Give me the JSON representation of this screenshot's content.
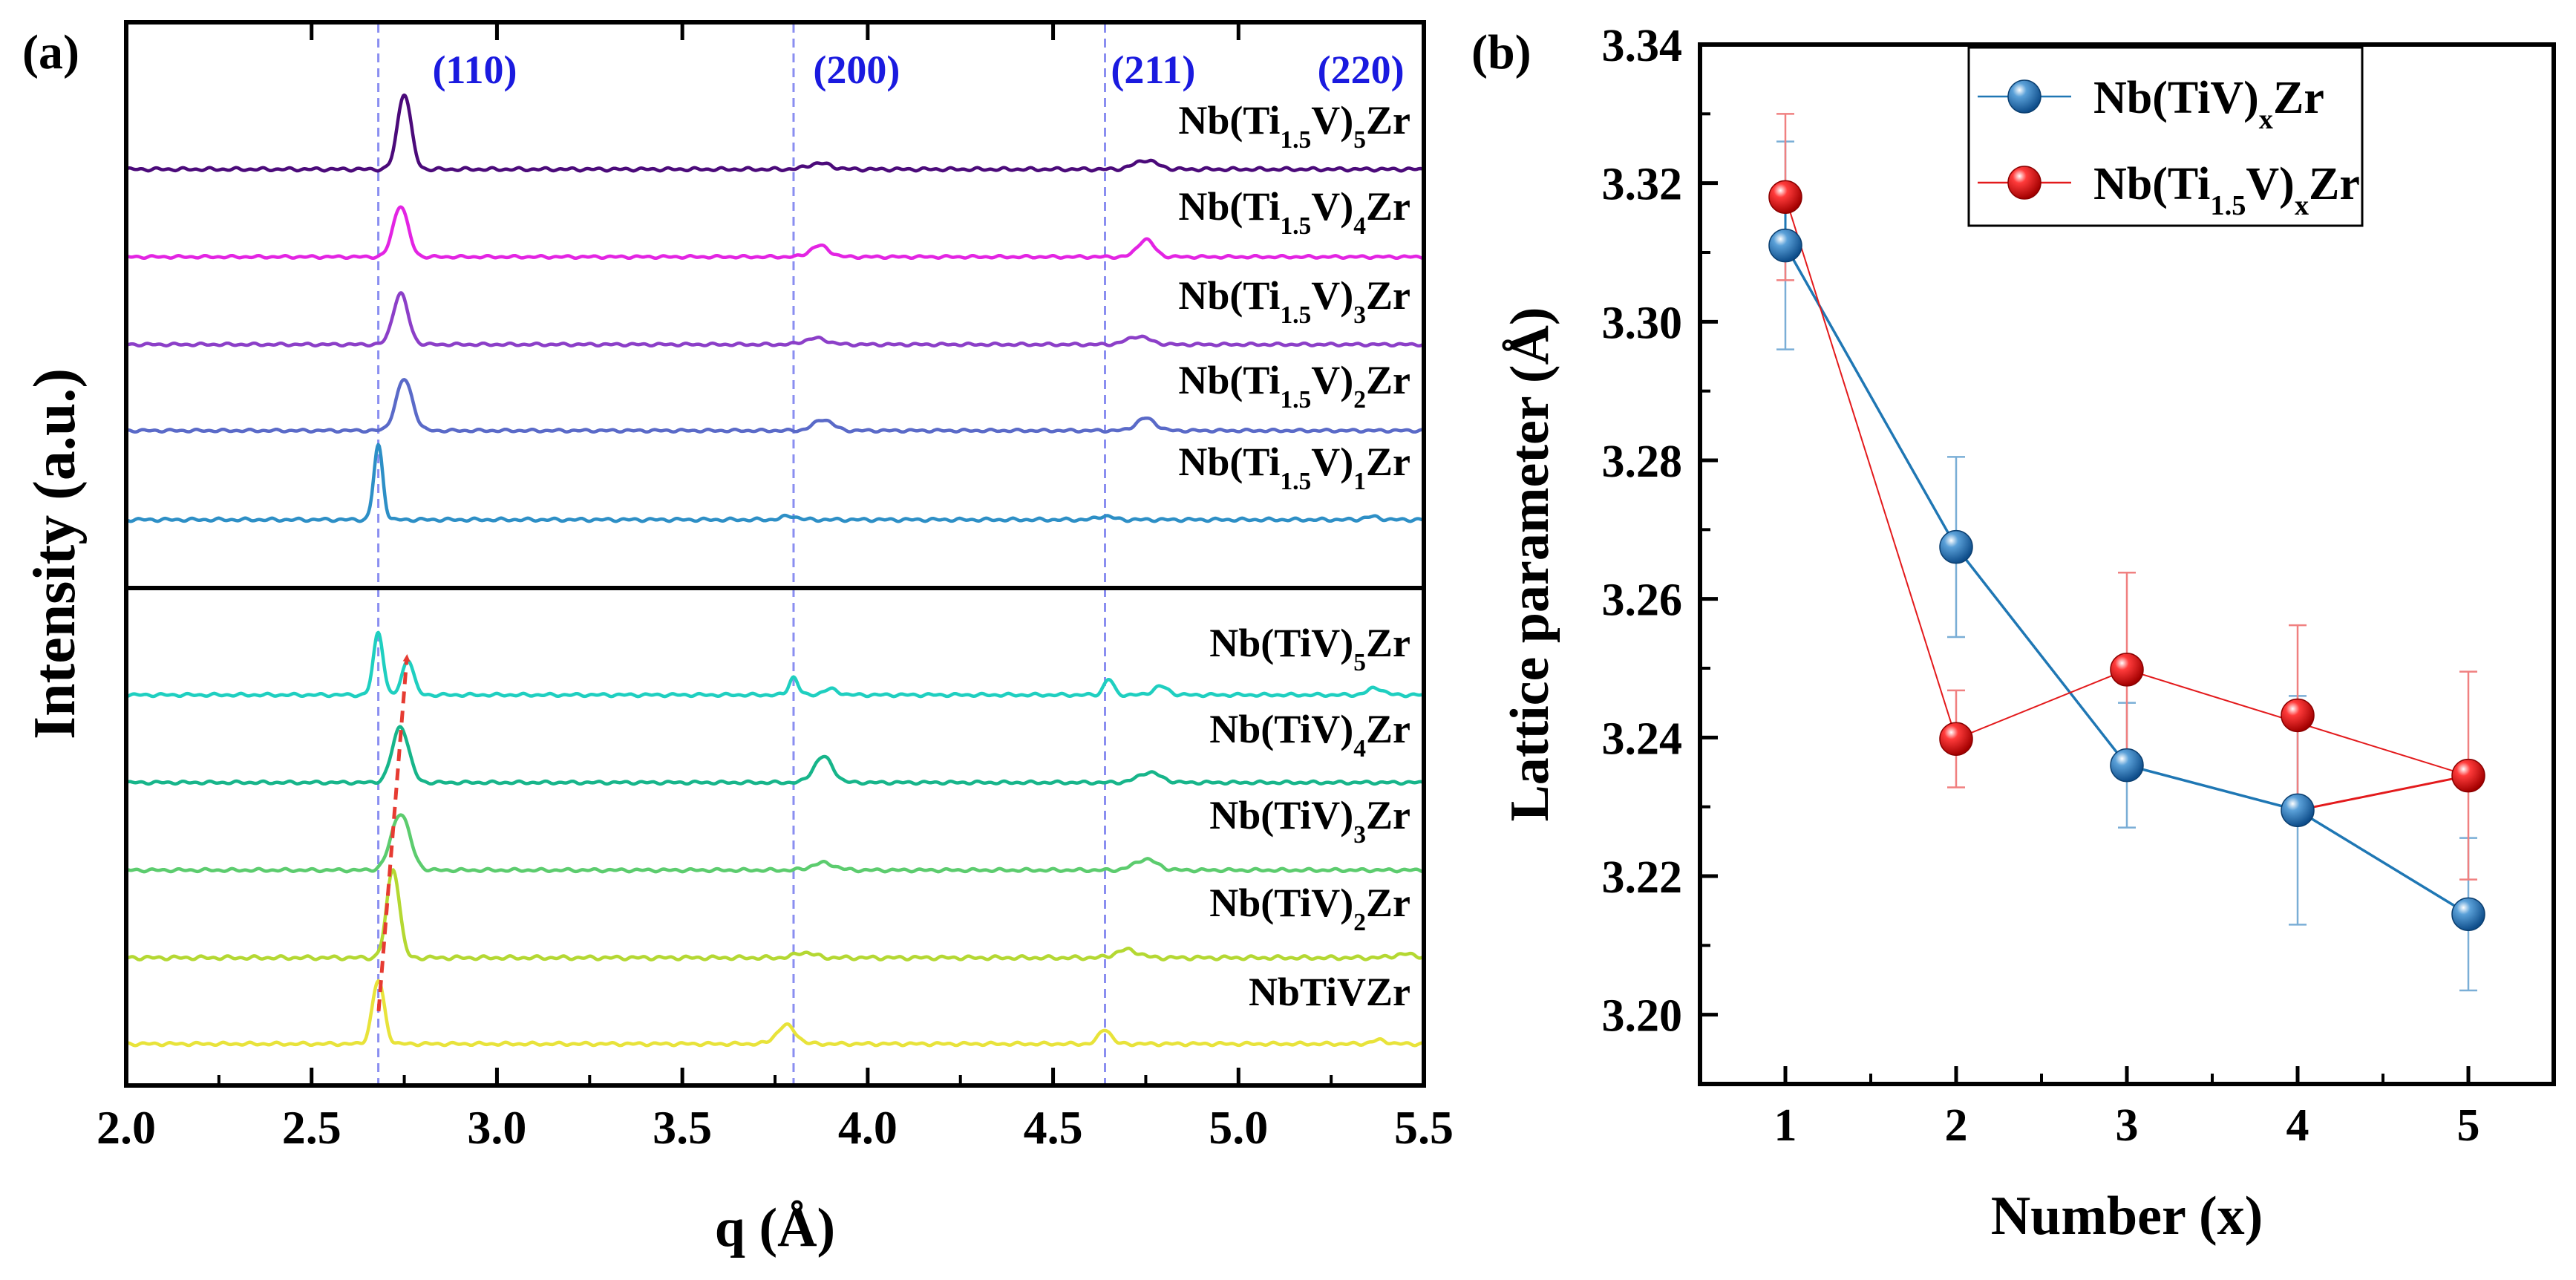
{
  "colors": {
    "peak_marker": "#1a1adf",
    "peak_line": "#8a8ef0",
    "shift_arrow": "#e63b32",
    "series_tiv": "#1f77b4",
    "series_ti15v": "#e31a1c",
    "bar_tiv": "#7aaed6",
    "bar_ti15v": "#f08080"
  },
  "chart_data": [
    {
      "panel_label": "(a)",
      "type": "line",
      "title": "",
      "xlabel": "q (Å)",
      "ylabel": "Intensity (a.u.)",
      "xlim": [
        2.0,
        5.5
      ],
      "xticks": [
        "2.0",
        "2.5",
        "3.0",
        "3.5",
        "4.0",
        "4.5",
        "5.0",
        "5.5"
      ],
      "reference_lines_q": [
        2.68,
        3.8,
        4.64
      ],
      "peak_labels": [
        {
          "text": "(110)",
          "q": 2.94
        },
        {
          "text": "(200)",
          "q": 3.97
        },
        {
          "text": "(211)",
          "q": 4.77
        },
        {
          "text": "(220)",
          "q": 5.33
        }
      ],
      "series": [
        {
          "label": "Nb(Ti1.5V)5Zr",
          "text": {
            "pre": "Nb(Ti",
            "sub1": "1.5",
            "mid": "V)",
            "sub2": "5",
            "post": "Zr"
          },
          "color": "#4b0a7a",
          "peaks": [
            {
              "q": 2.75,
              "h": 1.0,
              "w": 0.018
            },
            {
              "q": 3.87,
              "h": 0.08,
              "w": 0.03
            },
            {
              "q": 4.75,
              "h": 0.12,
              "w": 0.03
            }
          ]
        },
        {
          "label": "Nb(Ti1.5V)4Zr",
          "text": {
            "pre": "Nb(Ti",
            "sub1": "1.5",
            "mid": "V)",
            "sub2": "4",
            "post": "Zr"
          },
          "color": "#e324e3",
          "peaks": [
            {
              "q": 2.74,
              "h": 0.82,
              "w": 0.02
            },
            {
              "q": 3.87,
              "h": 0.18,
              "w": 0.025
            },
            {
              "q": 4.75,
              "h": 0.28,
              "w": 0.022
            }
          ]
        },
        {
          "label": "Nb(Ti1.5V)3Zr",
          "text": {
            "pre": "Nb(Ti",
            "sub1": "1.5",
            "mid": "V)",
            "sub2": "3",
            "post": "Zr"
          },
          "color": "#8c3fc8",
          "peaks": [
            {
              "q": 2.74,
              "h": 0.82,
              "w": 0.02
            },
            {
              "q": 3.86,
              "h": 0.1,
              "w": 0.03
            },
            {
              "q": 4.73,
              "h": 0.13,
              "w": 0.03
            }
          ]
        },
        {
          "label": "Nb(Ti1.5V)2Zr",
          "text": {
            "pre": "Nb(Ti",
            "sub1": "1.5",
            "mid": "V)",
            "sub2": "2",
            "post": "Zr"
          },
          "color": "#5a6ac8",
          "peaks": [
            {
              "q": 2.75,
              "h": 0.82,
              "w": 0.022
            },
            {
              "q": 3.88,
              "h": 0.18,
              "w": 0.025
            },
            {
              "q": 4.75,
              "h": 0.2,
              "w": 0.025
            }
          ]
        },
        {
          "label": "Nb(Ti1.5V)1Zr",
          "text": {
            "pre": "Nb(Ti",
            "sub1": "1.5",
            "mid": "V)",
            "sub2": "1",
            "post": "Zr"
          },
          "color": "#2d8fc6",
          "peaks": [
            {
              "q": 2.68,
              "h": 1.0,
              "w": 0.012
            },
            {
              "q": 3.79,
              "h": 0.05,
              "w": 0.02
            },
            {
              "q": 4.64,
              "h": 0.05,
              "w": 0.02
            },
            {
              "q": 5.36,
              "h": 0.04,
              "w": 0.02
            }
          ]
        },
        {
          "label": "Nb(TiV)5Zr",
          "text": {
            "pre": "Nb(TiV)",
            "sub1": "",
            "mid": "",
            "sub2": "5",
            "post": "Zr"
          },
          "color": "#1fcfc0",
          "peaks": [
            {
              "q": 2.68,
              "h": 0.88,
              "w": 0.013
            },
            {
              "q": 2.76,
              "h": 0.5,
              "w": 0.015
            },
            {
              "q": 3.8,
              "h": 0.25,
              "w": 0.012
            },
            {
              "q": 3.9,
              "h": 0.08,
              "w": 0.02
            },
            {
              "q": 4.65,
              "h": 0.22,
              "w": 0.013
            },
            {
              "q": 4.79,
              "h": 0.12,
              "w": 0.02
            },
            {
              "q": 5.37,
              "h": 0.1,
              "w": 0.02
            }
          ]
        },
        {
          "label": "Nb(TiV)4Zr",
          "text": {
            "pre": "Nb(TiV)",
            "sub1": "",
            "mid": "",
            "sub2": "4",
            "post": "Zr"
          },
          "color": "#17b58a",
          "peaks": [
            {
              "q": 2.74,
              "h": 0.82,
              "w": 0.022
            },
            {
              "q": 3.88,
              "h": 0.38,
              "w": 0.025
            },
            {
              "q": 4.76,
              "h": 0.15,
              "w": 0.03
            }
          ]
        },
        {
          "label": "Nb(TiV)3Zr",
          "text": {
            "pre": "Nb(TiV)",
            "sub1": "",
            "mid": "",
            "sub2": "3",
            "post": "Zr"
          },
          "color": "#5ccc6e",
          "peaks": [
            {
              "q": 2.74,
              "h": 0.78,
              "w": 0.025
            },
            {
              "q": 3.88,
              "h": 0.1,
              "w": 0.03
            },
            {
              "q": 4.75,
              "h": 0.15,
              "w": 0.03
            }
          ]
        },
        {
          "label": "Nb(TiV)2Zr",
          "text": {
            "pre": "Nb(TiV)",
            "sub1": "",
            "mid": "",
            "sub2": "2",
            "post": "Zr"
          },
          "color": "#b4d832",
          "peaks": [
            {
              "q": 2.72,
              "h": 1.0,
              "w": 0.017
            },
            {
              "q": 3.83,
              "h": 0.06,
              "w": 0.025
            },
            {
              "q": 4.7,
              "h": 0.09,
              "w": 0.03
            },
            {
              "q": 5.45,
              "h": 0.04,
              "w": 0.03
            }
          ]
        },
        {
          "label": "NbTiVZr",
          "text": {
            "pre": "NbTiVZr",
            "sub1": "",
            "mid": "",
            "sub2": "",
            "post": ""
          },
          "color": "#e8e33a",
          "peaks": [
            {
              "q": 2.68,
              "h": 0.85,
              "w": 0.016
            },
            {
              "q": 3.78,
              "h": 0.25,
              "w": 0.025
            },
            {
              "q": 4.64,
              "h": 0.2,
              "w": 0.016
            },
            {
              "q": 5.38,
              "h": 0.05,
              "w": 0.02
            }
          ]
        }
      ]
    },
    {
      "panel_label": "(b)",
      "type": "line",
      "title": "",
      "xlabel": "Number (x)",
      "ylabel": "Lattice parameter (Å)",
      "xlim": [
        0.5,
        5.5
      ],
      "ylim": [
        3.19,
        3.34
      ],
      "xticks": [
        "1",
        "2",
        "3",
        "4",
        "5"
      ],
      "yticks": [
        "3.20",
        "3.22",
        "3.24",
        "3.26",
        "3.28",
        "3.30",
        "3.32",
        "3.34"
      ],
      "legend_position": "top-right",
      "series": [
        {
          "name": "Nb(TiV)xZr",
          "legend": {
            "pre": "Nb(TiV)",
            "sub1": "x",
            "mid": "",
            "sub2": "",
            "post": "Zr"
          },
          "color": "#1f77b4",
          "x": [
            1,
            2,
            3,
            4,
            5
          ],
          "y": [
            3.311,
            3.2675,
            3.236,
            3.2295,
            3.2145
          ],
          "err": [
            0.015,
            0.013,
            0.009,
            0.0165,
            0.011
          ],
          "connect_order": [
            1,
            2,
            3,
            4,
            5
          ]
        },
        {
          "name": "Nb(Ti1.5V)xZr",
          "legend": {
            "pre": "Nb(Ti",
            "sub1": "1.5",
            "mid": "V)",
            "sub2": "x",
            "post": "Zr"
          },
          "color": "#e31a1c",
          "x": [
            1,
            2,
            3,
            4,
            5
          ],
          "y": [
            3.318,
            3.2398,
            3.2498,
            3.2432,
            3.2345
          ],
          "err": [
            0.012,
            0.007,
            0.014,
            0.013,
            0.015
          ],
          "connect_order": [
            1,
            2,
            3,
            5
          ]
        }
      ],
      "extra_segments": [
        {
          "from": {
            "series": 0,
            "x": 4
          },
          "to": {
            "series": 1,
            "x": 5
          },
          "color": "#e31a1c"
        },
        {
          "from": {
            "series": 1,
            "x": 1
          },
          "to": {
            "series": 0,
            "x": 1
          },
          "color": "#1f77b4"
        }
      ]
    }
  ]
}
